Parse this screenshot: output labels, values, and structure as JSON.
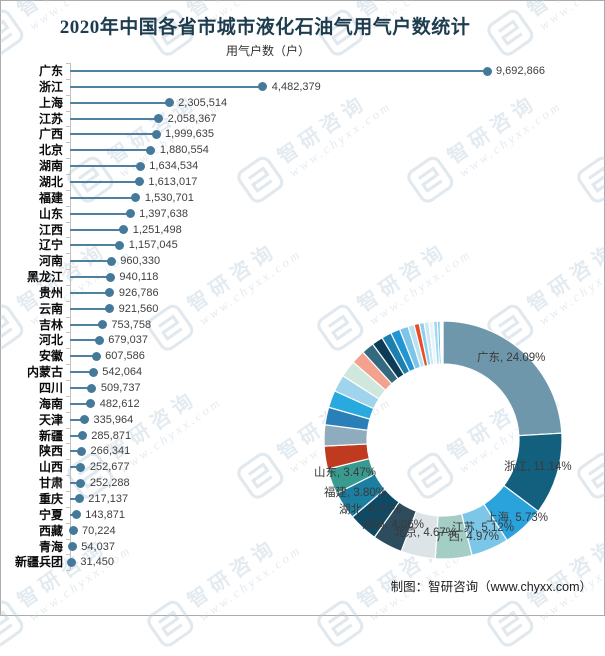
{
  "page": {
    "title": "2020年中国各省市城市液化石油气用气户数统计",
    "subtitle": "用气户数（户）",
    "footer": "制图：智研咨询（www.chyxx.com）"
  },
  "watermark": {
    "brand": "智研咨询",
    "site": "www.chyxx.com"
  },
  "colors": {
    "title_text": "#1d3c4e",
    "stem": "#4e81a0",
    "dot": "#44799a",
    "axis": "#c2c2c2",
    "value_text": "#3f3f3f",
    "category_text": "#0a0a0a",
    "pie_label_text": "#3a3a3a"
  },
  "chart_data": [
    {
      "type": "bar",
      "subtype": "horizontal-lollipop",
      "title": "2020年中国各省市城市液化石油气用气户数统计",
      "xlabel": "用气户数（户）",
      "ylabel": "",
      "grid": false,
      "xlim": [
        0,
        9692866
      ],
      "value_format": "thousands-comma",
      "categories": [
        "广东",
        "浙江",
        "上海",
        "江苏",
        "广西",
        "北京",
        "湖南",
        "湖北",
        "福建",
        "山东",
        "江西",
        "辽宁",
        "河南",
        "黑龙江",
        "贵州",
        "云南",
        "吉林",
        "河北",
        "安徽",
        "内蒙古",
        "四川",
        "海南",
        "天津",
        "新疆",
        "陕西",
        "山西",
        "甘肃",
        "重庆",
        "宁夏",
        "西藏",
        "青海",
        "新疆兵团"
      ],
      "values": [
        9692866,
        4482379,
        2305514,
        2058367,
        1999635,
        1880554,
        1634534,
        1613017,
        1530701,
        1397638,
        1251498,
        1157045,
        960330,
        940118,
        926786,
        921560,
        753758,
        679037,
        607586,
        542064,
        509737,
        482612,
        335964,
        285871,
        266341,
        252677,
        252288,
        217137,
        143871,
        70224,
        54037,
        31450
      ]
    },
    {
      "type": "pie",
      "subtype": "donut",
      "inner_radius_ratio": 0.64,
      "start_angle": "top",
      "direction": "clockwise",
      "uses_same_series_as_bar": true,
      "labels_shown": [
        {
          "name": "广东",
          "pct": "24.09%"
        },
        {
          "name": "浙江",
          "pct": "11.14%"
        },
        {
          "name": "上海",
          "pct": "5.73%"
        },
        {
          "name": "江苏",
          "pct": "5.12%"
        },
        {
          "name": "广西",
          "pct": "4.97%"
        },
        {
          "name": "北京",
          "pct": "4.67%"
        },
        {
          "name": "湖南",
          "pct": "4.06%"
        },
        {
          "name": "湖北",
          "pct": "4.01%"
        },
        {
          "name": "福建",
          "pct": "3.80%"
        },
        {
          "name": "山东",
          "pct": "3.47%"
        }
      ],
      "colors": [
        "#6f97ac",
        "#135f7e",
        "#2aa2db",
        "#7cc6e8",
        "#a3cdc5",
        "#dde4e8",
        "#2d4c5e",
        "#0e4a66",
        "#1c7ea0",
        "#399a90",
        "#c03a20",
        "#8fabbe",
        "#2a7fb8",
        "#29aade",
        "#9fd4ec",
        "#cfe7dd",
        "#f2a28e",
        "#336a80",
        "#0d3d56",
        "#1d7fae",
        "#2196d3",
        "#7cc4e8",
        "#b8e2f2",
        "#e74e26",
        "#8ed0f0",
        "#c8e8f5",
        "#e8f4fa",
        "#a0d8f0",
        "#68c4ec",
        "#d0ecf8",
        "#b0e0f4",
        "#f0f8fc"
      ]
    }
  ]
}
